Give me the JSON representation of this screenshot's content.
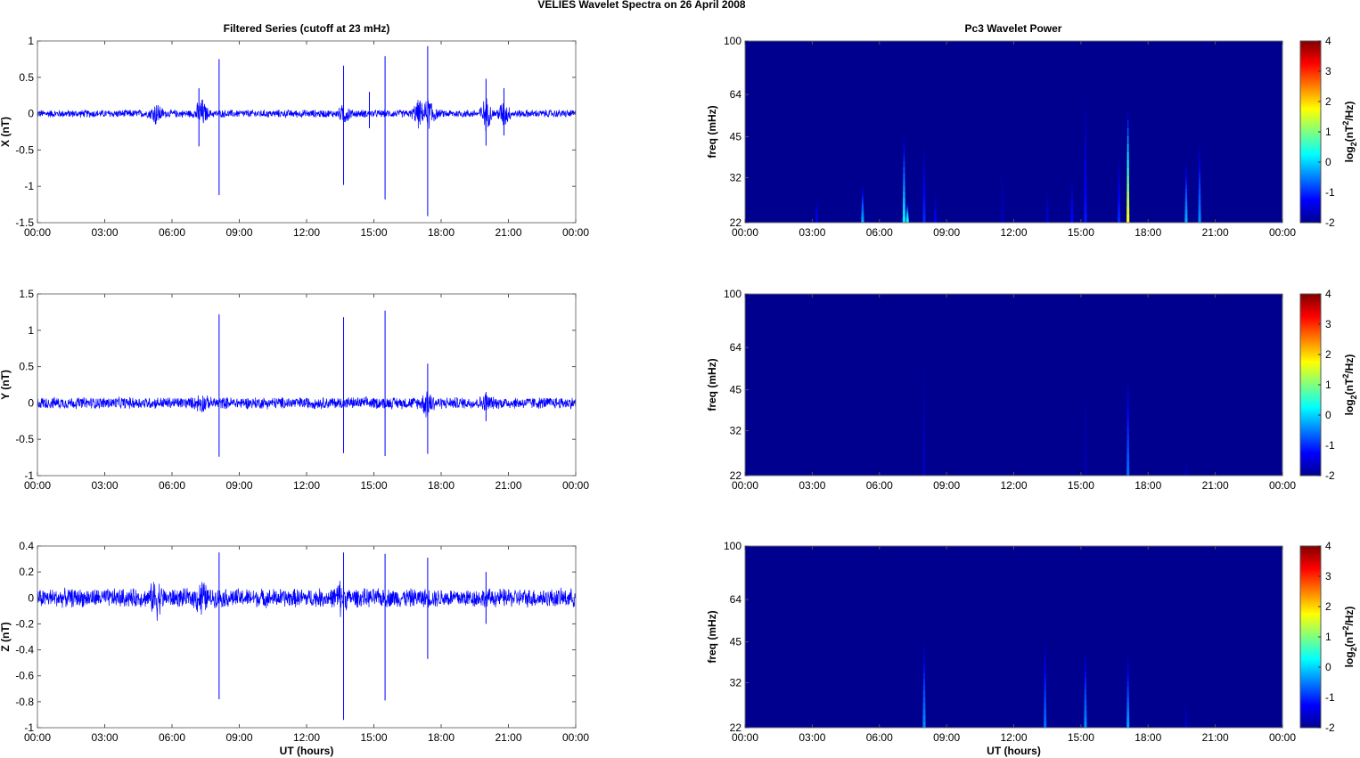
{
  "figure_title": "VELIES Wavelet Spectra on 26 April     2008",
  "left_column_title": "Filtered Series (cutoff at 23 mHz)",
  "right_column_title": "Pc3 Wavelet Power",
  "x_label": "UT (hours)",
  "freq_label": "freq (mHz)",
  "colorbar_label_parts": {
    "prefix": "log",
    "sub": "2",
    "mid": "(nT",
    "sup": "2",
    "suffix": "/Hz)"
  },
  "colors": {
    "series": "#0000ff",
    "spectrogram_background": "#00008f"
  },
  "chart_data": [
    {
      "type": "line",
      "component": "X",
      "ylabel": "X (nT)",
      "x_ticks": [
        "00:00",
        "03:00",
        "06:00",
        "09:00",
        "12:00",
        "15:00",
        "18:00",
        "21:00",
        "00:00"
      ],
      "y_ticks": [
        "1",
        "0.5",
        "0",
        "-0.5",
        "-1",
        "-1.5"
      ],
      "ylim": [
        -1.5,
        1
      ],
      "noise_amplitude": 0.06,
      "bursts": [
        [
          5.3,
          0.25
        ],
        [
          7.3,
          0.35
        ],
        [
          13.7,
          0.2
        ],
        [
          17.0,
          0.3
        ],
        [
          17.5,
          0.4
        ],
        [
          20.0,
          0.35
        ],
        [
          20.8,
          0.3
        ]
      ],
      "spikes": [
        [
          7.2,
          0.35,
          -0.45
        ],
        [
          8.1,
          0.75,
          -1.12
        ],
        [
          13.65,
          0.66,
          -0.98
        ],
        [
          14.8,
          0.3,
          -0.2
        ],
        [
          15.5,
          0.79,
          -1.18
        ],
        [
          17.4,
          0.93,
          -1.41
        ],
        [
          20.0,
          0.48,
          -0.44
        ],
        [
          20.8,
          0.35,
          -0.3
        ]
      ]
    },
    {
      "type": "line",
      "component": "Y",
      "ylabel": "Y (nT)",
      "x_ticks": [
        "00:00",
        "03:00",
        "06:00",
        "09:00",
        "12:00",
        "15:00",
        "18:00",
        "21:00",
        "00:00"
      ],
      "y_ticks": [
        "1.5",
        "1",
        "0.5",
        "0",
        "-0.5",
        "-1"
      ],
      "ylim": [
        -1,
        1.5
      ],
      "noise_amplitude": 0.09,
      "bursts": [
        [
          7.3,
          0.15
        ],
        [
          17.4,
          0.3
        ],
        [
          20.0,
          0.12
        ]
      ],
      "spikes": [
        [
          8.1,
          1.22,
          -0.74
        ],
        [
          13.65,
          1.18,
          -0.69
        ],
        [
          15.5,
          1.27,
          -0.73
        ],
        [
          17.4,
          0.54,
          -0.7
        ],
        [
          20.0,
          0.15,
          -0.25
        ]
      ]
    },
    {
      "type": "line",
      "component": "Z",
      "ylabel": "Z (nT)",
      "x_ticks": [
        "00:00",
        "03:00",
        "06:00",
        "09:00",
        "12:00",
        "15:00",
        "18:00",
        "21:00",
        "00:00"
      ],
      "y_ticks": [
        "0.4",
        "0.2",
        "0",
        "-0.2",
        "-0.4",
        "-0.6",
        "-0.8",
        "-1"
      ],
      "ylim": [
        -1,
        0.4
      ],
      "noise_amplitude": 0.08,
      "bursts": [
        [
          5.3,
          0.2
        ],
        [
          7.3,
          0.18
        ],
        [
          13.5,
          0.15
        ]
      ],
      "spikes": [
        [
          8.1,
          0.35,
          -0.78
        ],
        [
          13.65,
          0.35,
          -0.94
        ],
        [
          15.5,
          0.34,
          -0.79
        ],
        [
          17.4,
          0.31,
          -0.47
        ],
        [
          20.0,
          0.2,
          -0.2
        ]
      ]
    },
    {
      "type": "heatmap",
      "component": "X",
      "x_ticks": [
        "00:00",
        "03:00",
        "06:00",
        "09:00",
        "12:00",
        "15:00",
        "18:00",
        "21:00",
        "00:00"
      ],
      "y_ticks": [
        "100",
        "64",
        "45",
        "32",
        "22"
      ],
      "ylim_mhz": [
        22,
        100
      ],
      "colorbar_ticks": [
        "4",
        "3",
        "2",
        "1",
        "0",
        "-1",
        "-2"
      ],
      "clim": [
        -2,
        4
      ],
      "streaks": [
        [
          3.2,
          27,
          -1.3
        ],
        [
          5.25,
          30,
          -0.2
        ],
        [
          7.1,
          45,
          0.2
        ],
        [
          7.25,
          26,
          0.5
        ],
        [
          8.0,
          42,
          -1.0
        ],
        [
          8.5,
          28,
          -1.3
        ],
        [
          11.5,
          35,
          -1.6
        ],
        [
          13.5,
          30,
          -1.5
        ],
        [
          14.6,
          32,
          -1.2
        ],
        [
          15.2,
          62,
          -1.1
        ],
        [
          16.7,
          38,
          -1.0
        ],
        [
          17.1,
          55,
          1.8
        ],
        [
          19.7,
          36,
          -0.2
        ],
        [
          20.3,
          42,
          -0.4
        ]
      ]
    },
    {
      "type": "heatmap",
      "component": "Y",
      "x_ticks": [
        "00:00",
        "03:00",
        "06:00",
        "09:00",
        "12:00",
        "15:00",
        "18:00",
        "21:00",
        "00:00"
      ],
      "y_ticks": [
        "100",
        "64",
        "45",
        "32",
        "22"
      ],
      "ylim_mhz": [
        22,
        100
      ],
      "colorbar_ticks": [
        "4",
        "3",
        "2",
        "1",
        "0",
        "-1",
        "-2"
      ],
      "clim": [
        -2,
        4
      ],
      "streaks": [
        [
          8.0,
          62,
          -1.6
        ],
        [
          15.2,
          55,
          -1.7
        ],
        [
          17.1,
          50,
          -0.6
        ],
        [
          19.7,
          26,
          -1.7
        ]
      ]
    },
    {
      "type": "heatmap",
      "component": "Z",
      "x_ticks": [
        "00:00",
        "03:00",
        "06:00",
        "09:00",
        "12:00",
        "15:00",
        "18:00",
        "21:00",
        "00:00"
      ],
      "y_ticks": [
        "100",
        "64",
        "45",
        "32",
        "22"
      ],
      "ylim_mhz": [
        22,
        100
      ],
      "colorbar_ticks": [
        "4",
        "3",
        "2",
        "1",
        "0",
        "-1",
        "-2"
      ],
      "clim": [
        -2,
        4
      ],
      "streaks": [
        [
          8.0,
          45,
          -0.4
        ],
        [
          13.4,
          45,
          -0.6
        ],
        [
          15.2,
          42,
          -0.4
        ],
        [
          17.1,
          40,
          -0.3
        ],
        [
          19.7,
          28,
          -1.6
        ]
      ]
    }
  ]
}
